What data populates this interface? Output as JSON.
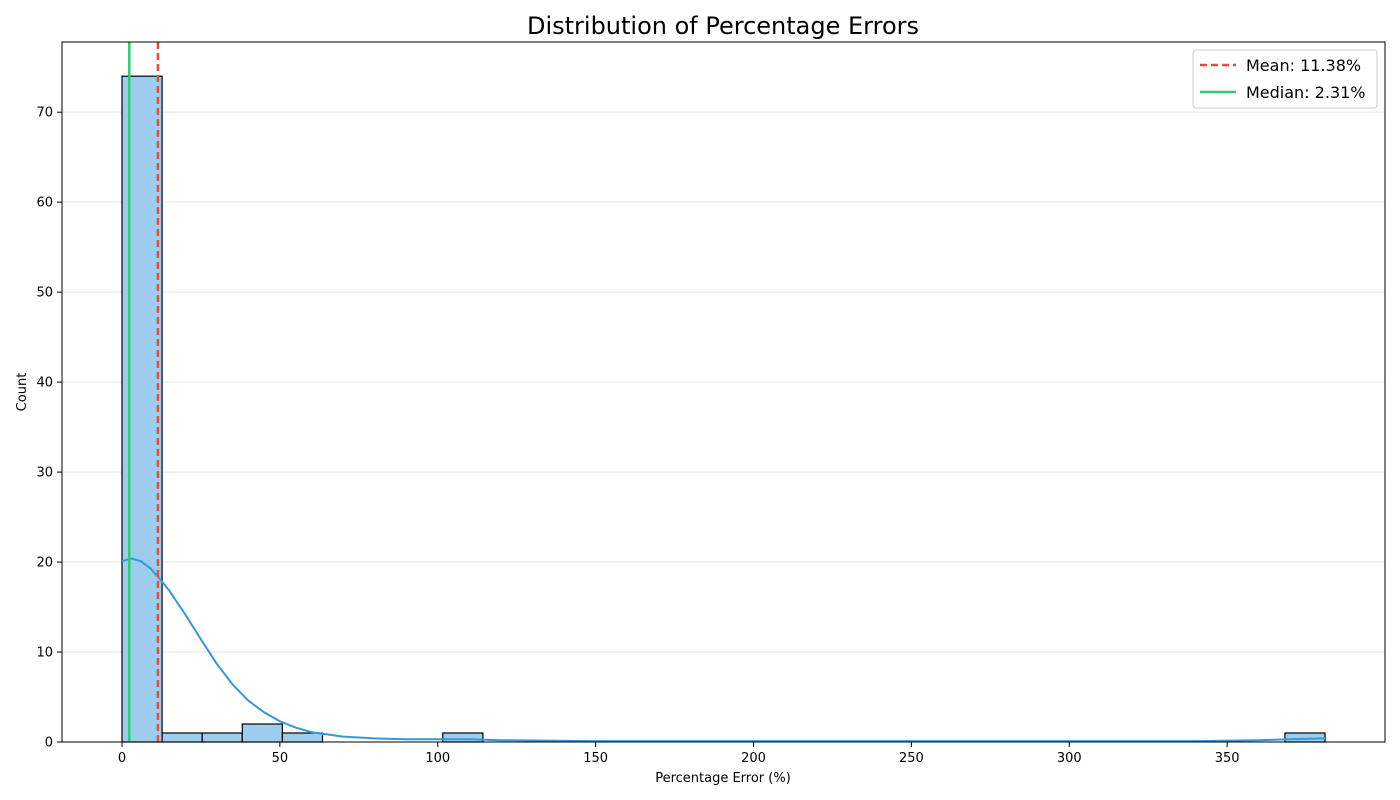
{
  "chart_data": {
    "type": "bar",
    "title": "Distribution of Percentage Errors",
    "xlabel": "Percentage Error (%)",
    "ylabel": "Count",
    "xlim": [
      -19,
      400
    ],
    "ylim": [
      0,
      77.8
    ],
    "xticks": [
      0,
      50,
      100,
      150,
      200,
      250,
      300,
      350
    ],
    "yticks": [
      0,
      10,
      20,
      30,
      40,
      50,
      60,
      70
    ],
    "grid": "y",
    "legend_position": "top-right",
    "bins": [
      {
        "x0": 0.0,
        "x1": 12.7,
        "count": 74
      },
      {
        "x0": 12.7,
        "x1": 25.4,
        "count": 1
      },
      {
        "x0": 25.4,
        "x1": 38.1,
        "count": 1
      },
      {
        "x0": 38.1,
        "x1": 50.8,
        "count": 2
      },
      {
        "x0": 50.8,
        "x1": 63.5,
        "count": 1
      },
      {
        "x0": 101.6,
        "x1": 114.3,
        "count": 1
      },
      {
        "x0": 368.3,
        "x1": 381.0,
        "count": 1
      }
    ],
    "kde": {
      "x": [
        0,
        3,
        6,
        9,
        12,
        15,
        20,
        25,
        30,
        35,
        40,
        45,
        50,
        55,
        60,
        70,
        80,
        90,
        100,
        110,
        120,
        150,
        200,
        250,
        300,
        340,
        360,
        370,
        381
      ],
      "y": [
        20.1,
        20.4,
        20.1,
        19.3,
        18.1,
        16.8,
        14.2,
        11.4,
        8.7,
        6.4,
        4.6,
        3.3,
        2.3,
        1.6,
        1.1,
        0.6,
        0.4,
        0.3,
        0.3,
        0.3,
        0.2,
        0.1,
        0.1,
        0.1,
        0.1,
        0.1,
        0.2,
        0.3,
        0.4
      ]
    },
    "mean": 11.38,
    "median": 2.31,
    "legend": [
      {
        "label": "Mean: 11.38%",
        "style": "dashed",
        "color": "#e74c3c"
      },
      {
        "label": "Median: 2.31%",
        "style": "solid",
        "color": "#2ecc71"
      }
    ],
    "colors": {
      "bar_fill": "#9ccdef",
      "bar_edge": "#000000",
      "kde": "#3498db",
      "mean": "#e74c3c",
      "median": "#2ecc71",
      "grid": "#e6e6e6"
    }
  }
}
